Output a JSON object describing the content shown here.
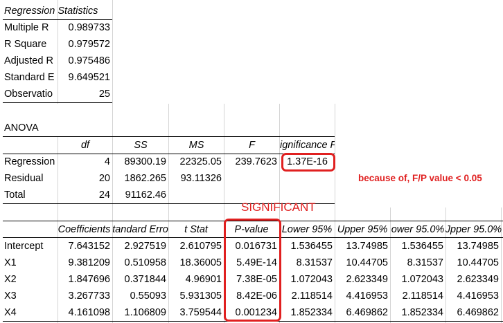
{
  "regression_statistics": {
    "title": "Regression Statistics",
    "rows": [
      {
        "label": "Multiple R",
        "value": "0.989733"
      },
      {
        "label": "R Square",
        "value": "0.979572"
      },
      {
        "label": "Adjusted R",
        "value": "0.975486"
      },
      {
        "label": "Standard E",
        "value": "9.649521"
      },
      {
        "label": "Observatio",
        "value": "25"
      }
    ]
  },
  "anova": {
    "title": "ANOVA",
    "headers": [
      "",
      "df",
      "SS",
      "MS",
      "F",
      "ignificance F"
    ],
    "rows": [
      [
        "Regression",
        "4",
        "89300.19",
        "22325.05",
        "239.7623",
        "1.37E-16"
      ],
      [
        "Residual",
        "20",
        "1862.265",
        "93.11326",
        "",
        ""
      ],
      [
        "Total",
        "24",
        "91162.46",
        "",
        "",
        ""
      ]
    ]
  },
  "annotation": {
    "note": "because of, F/P value < 0.05",
    "significant": "SIGNIFICANT",
    "highlight_color": "#e02020"
  },
  "coefficients": {
    "headers": [
      "",
      "Coefficients",
      "tandard Erro",
      "t Stat",
      "P-value",
      "Lower 95%",
      "Upper 95%",
      "ower 95.0%",
      "Jpper 95.0%"
    ],
    "rows": [
      [
        "Intercept",
        "7.643152",
        "2.927519",
        "2.610795",
        "0.016731",
        "1.536455",
        "13.74985",
        "1.536455",
        "13.74985"
      ],
      [
        "X1",
        "9.381209",
        "0.510958",
        "18.36005",
        "5.49E-14",
        "8.31537",
        "10.44705",
        "8.31537",
        "10.44705"
      ],
      [
        "X2",
        "1.847696",
        "0.371844",
        "4.96901",
        "7.38E-05",
        "1.072043",
        "2.623349",
        "1.072043",
        "2.623349"
      ],
      [
        "X3",
        "3.267733",
        "0.55093",
        "5.931305",
        "8.42E-06",
        "2.118514",
        "4.416953",
        "2.118514",
        "4.416953"
      ],
      [
        "X4",
        "4.161098",
        "1.106809",
        "3.759544",
        "0.001234",
        "1.852334",
        "6.469862",
        "1.852334",
        "6.469862"
      ]
    ]
  }
}
